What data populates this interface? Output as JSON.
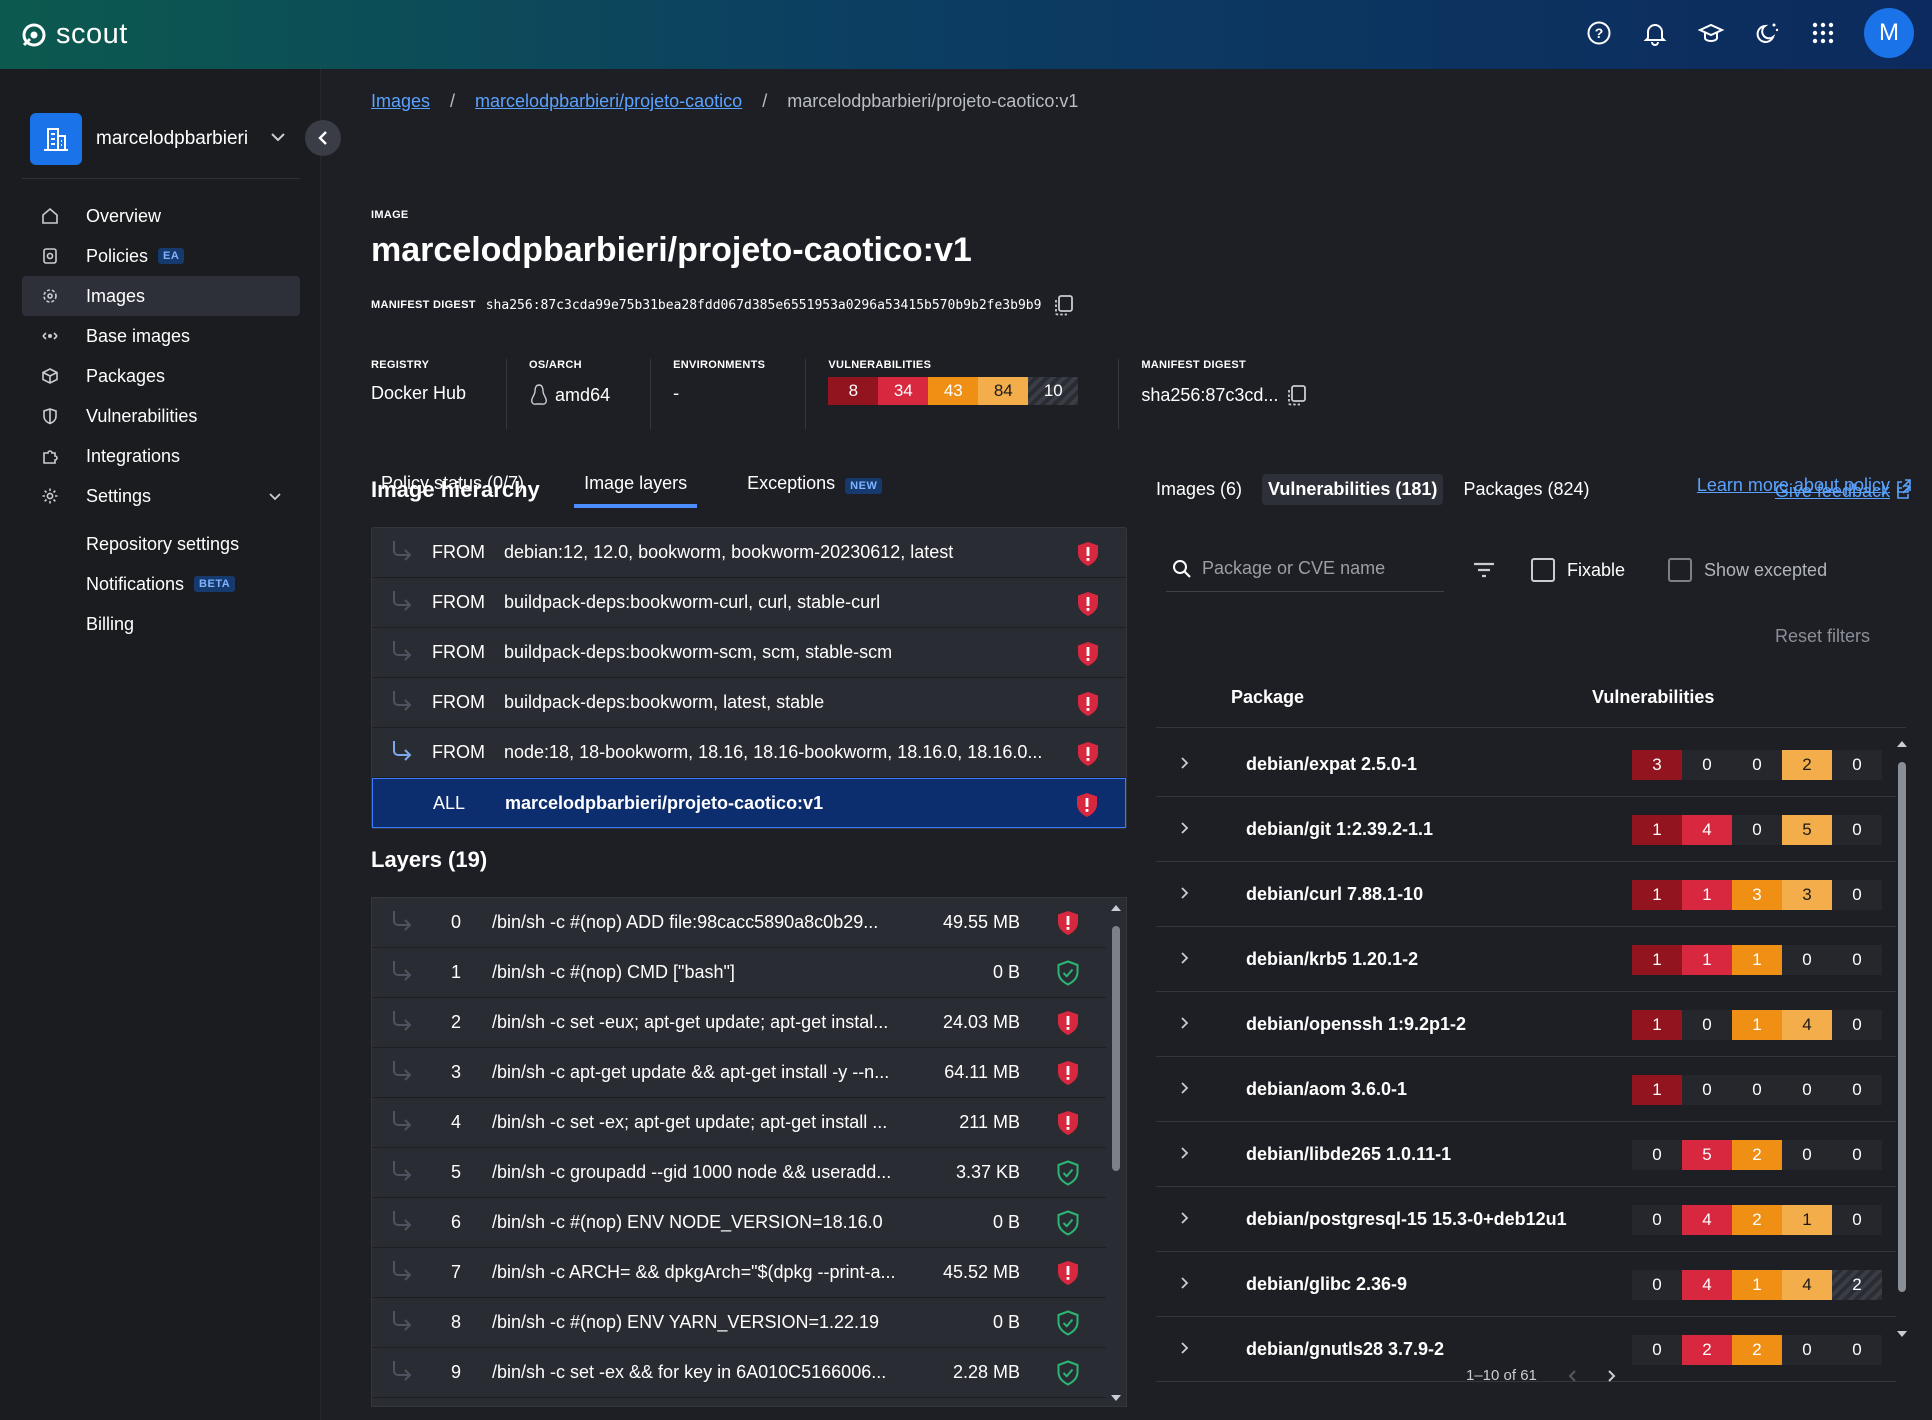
{
  "app": {
    "name": "scout"
  },
  "sidebar": {
    "org": "marcelodpbarbieri",
    "items": [
      {
        "label": "Overview",
        "icon": "home-icon"
      },
      {
        "label": "Policies",
        "icon": "policy-icon",
        "badge": "EA"
      },
      {
        "label": "Images",
        "icon": "images-icon",
        "active": true
      },
      {
        "label": "Base images",
        "icon": "base-images-icon"
      },
      {
        "label": "Packages",
        "icon": "package-icon"
      },
      {
        "label": "Vulnerabilities",
        "icon": "shield-icon"
      },
      {
        "label": "Integrations",
        "icon": "puzzle-icon"
      },
      {
        "label": "Settings",
        "icon": "gear-icon"
      }
    ],
    "sub_items": [
      {
        "label": "Repository settings"
      },
      {
        "label": "Notifications",
        "badge": "BETA"
      },
      {
        "label": "Billing"
      }
    ]
  },
  "breadcrumb": {
    "images": "Images",
    "repo": "marcelodpbarbieri/projeto-caotico",
    "current": "marcelodpbarbieri/projeto-caotico:v1",
    "sep": "/"
  },
  "image": {
    "label": "IMAGE",
    "title": "marcelodpbarbieri/projeto-caotico:v1",
    "digest_label": "MANIFEST DIGEST",
    "digest": "sha256:87c3cda99e75b31bea28fdd067d385e6551953a0296a53415b570b9b2fe3b9b9"
  },
  "meta": {
    "registry_label": "REGISTRY",
    "registry": "Docker Hub",
    "osarch_label": "OS/ARCH",
    "osarch": "amd64",
    "env_label": "ENVIRONMENTS",
    "env": "-",
    "vuln_label": "VULNERABILITIES",
    "vulns": {
      "critical": "8",
      "high": "34",
      "medium": "43",
      "low": "84",
      "unspecified": "10"
    },
    "digest_label": "MANIFEST DIGEST",
    "digest_short": "sha256:87c3cd..."
  },
  "tabs": [
    {
      "label": "Policy status (0/7)"
    },
    {
      "label": "Image layers",
      "active": true
    },
    {
      "label": "Exceptions",
      "badge": "NEW"
    }
  ],
  "learn_more": "Learn more about policy",
  "hierarchy": {
    "title": "Image hierarchy",
    "rows": [
      {
        "kw": "FROM",
        "name": "debian:12, 12.0, bookworm, bookworm-20230612, latest"
      },
      {
        "kw": "FROM",
        "name": "buildpack-deps:bookworm-curl, curl, stable-curl"
      },
      {
        "kw": "FROM",
        "name": "buildpack-deps:bookworm-scm, scm, stable-scm"
      },
      {
        "kw": "FROM",
        "name": "buildpack-deps:bookworm, latest, stable"
      },
      {
        "kw": "FROM",
        "name": "node:18, 18-bookworm, 18.16, 18.16-bookworm, 18.16.0, 18.16.0..."
      },
      {
        "kw": "ALL",
        "name": "marcelodpbarbieri/projeto-caotico:v1",
        "selected": true
      }
    ]
  },
  "layers": {
    "title": "Layers (19)",
    "rows": [
      {
        "idx": "0",
        "cmd": "/bin/sh -c #(nop) ADD file:98cacc5890a8c0b29...",
        "size": "49.55 MB",
        "vuln": true
      },
      {
        "idx": "1",
        "cmd": "/bin/sh -c #(nop) CMD [\"bash\"]",
        "size": "0 B",
        "vuln": false
      },
      {
        "idx": "2",
        "cmd": "/bin/sh -c set -eux; apt-get update; apt-get instal...",
        "size": "24.03 MB",
        "vuln": true
      },
      {
        "idx": "3",
        "cmd": "/bin/sh -c apt-get update && apt-get install -y --n...",
        "size": "64.11 MB",
        "vuln": true
      },
      {
        "idx": "4",
        "cmd": "/bin/sh -c set -ex; apt-get update; apt-get install ...",
        "size": "211 MB",
        "vuln": true
      },
      {
        "idx": "5",
        "cmd": "/bin/sh -c groupadd --gid 1000 node && useradd...",
        "size": "3.37 KB",
        "vuln": false
      },
      {
        "idx": "6",
        "cmd": "/bin/sh -c #(nop) ENV NODE_VERSION=18.16.0",
        "size": "0 B",
        "vuln": false
      },
      {
        "idx": "7",
        "cmd": "/bin/sh -c ARCH= && dpkgArch=\"$(dpkg --print-a...",
        "size": "45.52 MB",
        "vuln": true
      },
      {
        "idx": "8",
        "cmd": "/bin/sh -c #(nop) ENV YARN_VERSION=1.22.19",
        "size": "0 B",
        "vuln": false
      },
      {
        "idx": "9",
        "cmd": "/bin/sh -c set -ex && for key in 6A010C5166006...",
        "size": "2.28 MB",
        "vuln": false
      }
    ]
  },
  "right": {
    "tabs": [
      {
        "label": "Images (6)"
      },
      {
        "label": "Vulnerabilities (181)",
        "active": true
      },
      {
        "label": "Packages (824)"
      }
    ],
    "feedback": "Give feedback",
    "search_placeholder": "Package or CVE name",
    "fixable": "Fixable",
    "show_excepted": "Show excepted",
    "reset": "Reset filters",
    "col_package": "Package",
    "col_vulns": "Vulnerabilities",
    "packages": [
      {
        "name": "debian/expat 2.5.0-1",
        "v": [
          "3",
          "0",
          "0",
          "2",
          "0"
        ]
      },
      {
        "name": "debian/git 1:2.39.2-1.1",
        "v": [
          "1",
          "4",
          "0",
          "5",
          "0"
        ]
      },
      {
        "name": "debian/curl 7.88.1-10",
        "v": [
          "1",
          "1",
          "3",
          "3",
          "0"
        ]
      },
      {
        "name": "debian/krb5 1.20.1-2",
        "v": [
          "1",
          "1",
          "1",
          "0",
          "0"
        ]
      },
      {
        "name": "debian/openssh 1:9.2p1-2",
        "v": [
          "1",
          "0",
          "1",
          "4",
          "0"
        ]
      },
      {
        "name": "debian/aom 3.6.0-1",
        "v": [
          "1",
          "0",
          "0",
          "0",
          "0"
        ]
      },
      {
        "name": "debian/libde265 1.0.11-1",
        "v": [
          "0",
          "5",
          "2",
          "0",
          "0"
        ]
      },
      {
        "name": "debian/postgresql-15 15.3-0+deb12u1",
        "v": [
          "0",
          "4",
          "2",
          "1",
          "0"
        ]
      },
      {
        "name": "debian/glibc 2.36-9",
        "v": [
          "0",
          "4",
          "1",
          "4",
          "2"
        ]
      },
      {
        "name": "debian/gnutls28 3.7.9-2",
        "v": [
          "0",
          "2",
          "2",
          "0",
          "0"
        ]
      }
    ],
    "pager": "1–10 of 61"
  }
}
